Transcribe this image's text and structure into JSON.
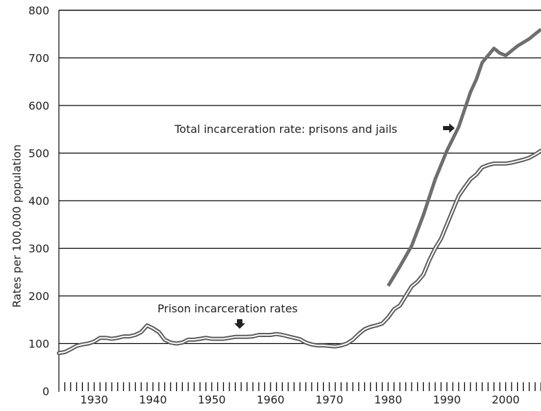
{
  "chart_data": {
    "type": "line",
    "title": "",
    "xlabel": "",
    "ylabel": "Rates per 100,000 population",
    "xlim": [
      1924,
      2006
    ],
    "ylim": [
      0,
      800
    ],
    "x_ticks": [
      1930,
      1940,
      1950,
      1960,
      1970,
      1980,
      1990,
      2000
    ],
    "y_ticks": [
      0,
      100,
      200,
      300,
      400,
      500,
      600,
      700,
      800
    ],
    "grid": "horizontal",
    "legend": "none",
    "colors": {
      "total": "#6e6e6e",
      "prison_outline": "#5a5a5a",
      "prison_fill": "#ffffff",
      "grid": "#000000"
    },
    "series": [
      {
        "key": "total",
        "style": "thick-solid",
        "x": [
          1980,
          1982,
          1984,
          1986,
          1988,
          1990,
          1992,
          1994,
          1995,
          1996,
          1998,
          1999,
          2000,
          2001,
          2002,
          2004,
          2006
        ],
        "values": [
          221,
          262,
          305,
          370,
          445,
          505,
          555,
          628,
          655,
          690,
          720,
          710,
          705,
          715,
          725,
          740,
          760
        ]
      },
      {
        "key": "prison",
        "style": "double-line",
        "x": [
          1924,
          1925,
          1926,
          1927,
          1928,
          1929,
          1930,
          1931,
          1932,
          1933,
          1934,
          1935,
          1936,
          1937,
          1938,
          1939,
          1940,
          1941,
          1942,
          1943,
          1944,
          1945,
          1946,
          1947,
          1948,
          1949,
          1950,
          1951,
          1952,
          1953,
          1954,
          1955,
          1956,
          1957,
          1958,
          1959,
          1960,
          1961,
          1962,
          1963,
          1964,
          1965,
          1966,
          1967,
          1968,
          1969,
          1970,
          1971,
          1972,
          1973,
          1974,
          1975,
          1976,
          1977,
          1978,
          1979,
          1980,
          1981,
          1982,
          1983,
          1984,
          1985,
          1986,
          1987,
          1988,
          1989,
          1990,
          1991,
          1992,
          1993,
          1994,
          1995,
          1996,
          1997,
          1998,
          1999,
          2000,
          2001,
          2002,
          2003,
          2004,
          2005,
          2006
        ],
        "values": [
          80,
          82,
          88,
          95,
          98,
          100,
          104,
          112,
          112,
          110,
          112,
          115,
          115,
          118,
          124,
          138,
          132,
          124,
          108,
          102,
          100,
          102,
          108,
          108,
          110,
          112,
          110,
          110,
          110,
          112,
          114,
          114,
          114,
          115,
          118,
          118,
          118,
          120,
          118,
          115,
          112,
          109,
          102,
          98,
          96,
          96,
          95,
          94,
          96,
          100,
          108,
          120,
          130,
          135,
          138,
          142,
          155,
          172,
          180,
          200,
          220,
          230,
          245,
          275,
          300,
          320,
          350,
          380,
          410,
          428,
          445,
          455,
          470,
          475,
          478,
          478,
          478,
          480,
          483,
          486,
          490,
          497,
          505
        ]
      }
    ],
    "annotations": [
      {
        "text": "Total incarceration rate: prisons and jails",
        "arrow": "right",
        "target_series": "total"
      },
      {
        "text": "Prison incarceration rates",
        "arrow": "down",
        "target_series": "prison"
      }
    ]
  }
}
